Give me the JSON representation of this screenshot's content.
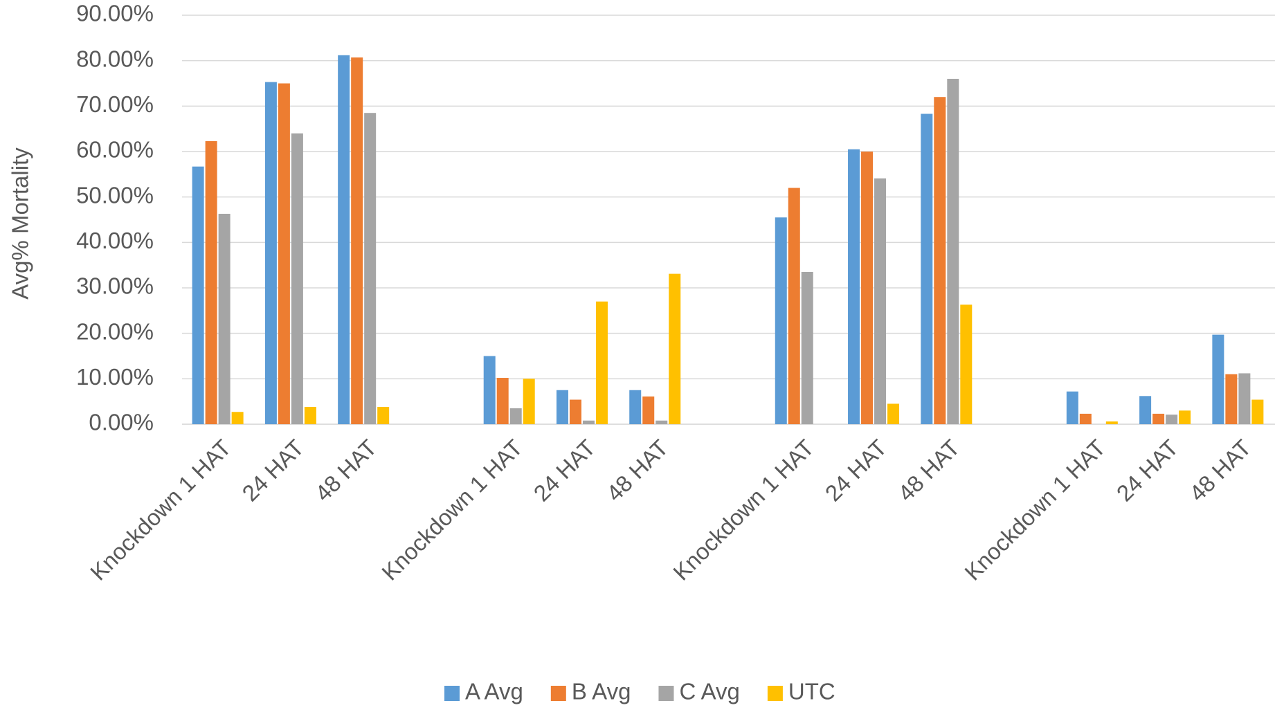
{
  "chart_data": {
    "type": "bar",
    "y_label": "Avg% Mortality",
    "categories": [
      "Knockdown 1 HAT",
      "24 HAT",
      "48 HAT",
      null,
      "Knockdown 1 HAT",
      "24 HAT",
      "48 HAT",
      null,
      "Knockdown 1 HAT",
      "24 HAT",
      "48 HAT",
      null,
      "Knockdown 1 HAT",
      "24 HAT",
      "48 HAT"
    ],
    "series": [
      {
        "name": "A Avg",
        "color": "#5b9bd5",
        "values": [
          56.7,
          75.3,
          81.2,
          null,
          15.0,
          7.5,
          7.5,
          null,
          45.5,
          60.5,
          68.3,
          null,
          7.2,
          6.2,
          19.7
        ]
      },
      {
        "name": "B Avg",
        "color": "#ed7d31",
        "values": [
          62.3,
          75.0,
          80.7,
          null,
          10.2,
          5.4,
          6.1,
          null,
          52.0,
          60.0,
          72.0,
          null,
          2.3,
          2.3,
          11.0
        ]
      },
      {
        "name": "C Avg",
        "color": "#a5a5a5",
        "values": [
          46.3,
          64.0,
          68.5,
          null,
          3.5,
          0.8,
          0.8,
          null,
          33.5,
          54.1,
          76.0,
          null,
          0,
          2.1,
          11.2
        ]
      },
      {
        "name": "UTC",
        "color": "#ffc000",
        "values": [
          2.7,
          3.8,
          3.8,
          null,
          10.0,
          27.0,
          33.1,
          null,
          0,
          4.5,
          26.3,
          null,
          0.6,
          3.0,
          5.4
        ]
      }
    ],
    "ylim": [
      0,
      90
    ],
    "yticks": [
      {
        "value": 0,
        "label": "0.00%"
      },
      {
        "value": 10,
        "label": "10.00%"
      },
      {
        "value": 20,
        "label": "20.00%"
      },
      {
        "value": 30,
        "label": "30.00%"
      },
      {
        "value": 40,
        "label": "40.00%"
      },
      {
        "value": 50,
        "label": "50.00%"
      },
      {
        "value": 60,
        "label": "60.00%"
      },
      {
        "value": 70,
        "label": "70.00%"
      },
      {
        "value": 80,
        "label": "80.00%"
      },
      {
        "value": 90,
        "label": "90.00%"
      }
    ],
    "grid": true,
    "legend": "bottom"
  }
}
